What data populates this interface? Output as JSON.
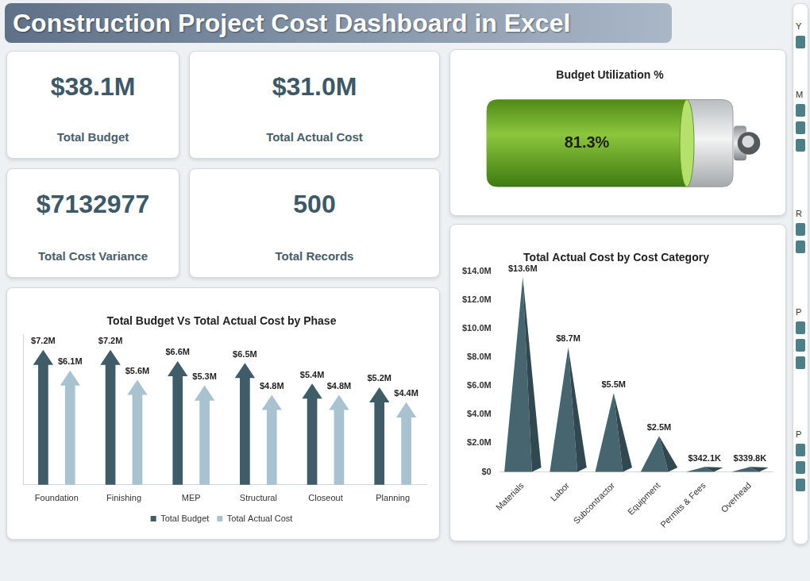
{
  "title": "Construction Project Cost Dashboard in Excel",
  "kpis": [
    {
      "value": "$38.1M",
      "label": "Total Budget"
    },
    {
      "value": "$31.0M",
      "label": "Total Actual Cost"
    },
    {
      "value": "$7132977",
      "label": "Total Cost Variance"
    },
    {
      "value": "500",
      "label": "Total Records"
    }
  ],
  "slicer_headers": [
    "Y",
    "M",
    "R",
    "P",
    "P"
  ],
  "chart_data": [
    {
      "type": "bar",
      "title": "Budget Utilization %",
      "orientation": "horizontal",
      "marker": "battery",
      "categories": [
        null
      ],
      "values": [
        81.3
      ],
      "value_labels": [
        "81.3%"
      ],
      "color": "#8cc63e",
      "xlim": [
        0,
        100
      ],
      "tick_labels": false,
      "data_labels": true,
      "grid": false
    },
    {
      "type": "bar",
      "title": "Total Budget Vs Total Actual Cost by Phase",
      "marker": "arrow",
      "categories": [
        "Foundation",
        "Finishing",
        "MEP",
        "Structural",
        "Closeout",
        "Planning"
      ],
      "series": [
        {
          "name": "Total Budget",
          "color": "#3f5c68",
          "values": [
            7.2,
            7.2,
            6.6,
            6.5,
            5.4,
            5.2
          ],
          "value_labels": [
            "$7.2M",
            "$7.2M",
            "$6.6M",
            "$6.5M",
            "$5.4M",
            "$5.2M"
          ]
        },
        {
          "name": "Total Actual Cost",
          "color": "#a8c3cf",
          "values": [
            6.1,
            5.6,
            5.3,
            4.8,
            4.8,
            4.4
          ],
          "value_labels": [
            "$6.1M",
            "$5.6M",
            "$5.3M",
            "$4.8M",
            "$4.8M",
            "$4.4M"
          ]
        }
      ],
      "ylim": [
        0,
        8
      ],
      "tick_labels": "x",
      "legend": "bottom",
      "data_labels": true,
      "grid": false
    },
    {
      "type": "bar",
      "title": "Total Actual Cost by Cost Category",
      "marker": "cone",
      "categories": [
        "Materials",
        "Labor",
        "Subcontractor",
        "Equipment",
        "Permits & Fees",
        "Overhead"
      ],
      "values": [
        13.6,
        8.7,
        5.5,
        2.5,
        0.3421,
        0.3398
      ],
      "value_labels": [
        "$13.6M",
        "$8.7M",
        "$5.5M",
        "$2.5M",
        "$342.1K",
        "$339.8K"
      ],
      "color": "#46656f",
      "ylim": [
        0,
        14
      ],
      "yticks": [
        {
          "value": 0,
          "label": "$0"
        },
        {
          "value": 2,
          "label": "$2.0M"
        },
        {
          "value": 4,
          "label": "$4.0M"
        },
        {
          "value": 6,
          "label": "$6.0M"
        },
        {
          "value": 8,
          "label": "$8.0M"
        },
        {
          "value": 10,
          "label": "$10.0M"
        },
        {
          "value": 12,
          "label": "$12.0M"
        },
        {
          "value": 14,
          "label": "$14.0M"
        }
      ],
      "data_labels": true,
      "grid": false
    }
  ]
}
